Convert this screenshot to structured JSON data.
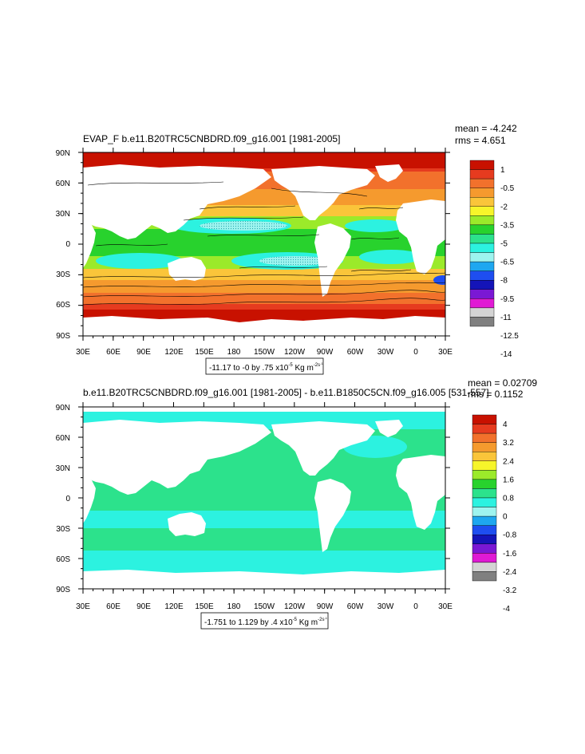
{
  "panels": [
    {
      "title": "EVAP_F b.e11.B20TRC5CNBDRD.f09_g16.001 [1981-2005]",
      "stats": [
        "mean = -4.242",
        "rms = 4.651"
      ],
      "lat_labels": [
        "90N",
        "60N",
        "30N",
        "0",
        "30S",
        "60S",
        "90S"
      ],
      "lon_labels": [
        "30E",
        "60E",
        "90E",
        "120E",
        "150E",
        "180",
        "150W",
        "120W",
        "90W",
        "60W",
        "30W",
        "0",
        "30E"
      ],
      "range_note": "-11.17 to -0 by .75 x10",
      "range_exp": "-5",
      "range_units": " Kg m",
      "range_units_exp": "-2",
      "range_units_exp2": "s",
      "range_units_exp3": "-1",
      "colorbar_labels": [
        "1",
        "-0.5",
        "-2",
        "-3.5",
        "-5",
        "-6.5",
        "-8",
        "-9.5",
        "-11",
        "-12.5",
        "-14"
      ],
      "colorbar_colors": [
        "#c81100",
        "#e63b1f",
        "#f2712c",
        "#f59a2e",
        "#fac53a",
        "#f7f52a",
        "#9bea2a",
        "#28d22d",
        "#2ce28c",
        "#2cf2e0",
        "#9ef4ef",
        "#1ea7f0",
        "#1e4ef0",
        "#1414b8",
        "#7a18d4",
        "#e01ad4",
        "#d4d4d4",
        "#808080"
      ]
    },
    {
      "title": "b.e11.B20TRC5CNBDRD.f09_g16.001 [1981-2005] - b.e11.B1850C5CN.f09_g16.005 [531-557]",
      "stats": [
        "mean = 0.02709",
        "rms = 0.1152"
      ],
      "lat_labels": [
        "90N",
        "60N",
        "30N",
        "0",
        "30S",
        "60S",
        "90S"
      ],
      "lon_labels": [
        "30E",
        "60E",
        "90E",
        "120E",
        "150E",
        "180",
        "150W",
        "120W",
        "90W",
        "60W",
        "30W",
        "0",
        "30E"
      ],
      "range_note": "-1.751 to 1.129 by .4 x10",
      "range_exp": "-5",
      "range_units": " Kg m",
      "range_units_exp": "-2",
      "range_units_exp2": "s",
      "range_units_exp3": "-1",
      "colorbar_labels": [
        "4",
        "3.2",
        "2.4",
        "1.6",
        "0.8",
        "0",
        "-0.8",
        "-1.6",
        "-2.4",
        "-3.2",
        "-4"
      ],
      "colorbar_colors": [
        "#c81100",
        "#e63b1f",
        "#f2712c",
        "#f59a2e",
        "#fac53a",
        "#f7f52a",
        "#9bea2a",
        "#28d22d",
        "#2ce28c",
        "#2cf2e0",
        "#9ef4ef",
        "#1ea7f0",
        "#1e4ef0",
        "#1414b8",
        "#7a18d4",
        "#e01ad4",
        "#d4d4d4",
        "#808080"
      ]
    }
  ],
  "colors": {
    "land": "#ffffff",
    "ocean_top_polar": "#e63b1f",
    "ocean_top_mid": "#f59a2e",
    "ocean_top_sub": "#fac53a",
    "ocean_top_trop": "#28d22d",
    "ocean_top_min": "#2cf2e0",
    "ocean_bottom_a": "#2cf2e0",
    "ocean_bottom_b": "#28d22d"
  }
}
